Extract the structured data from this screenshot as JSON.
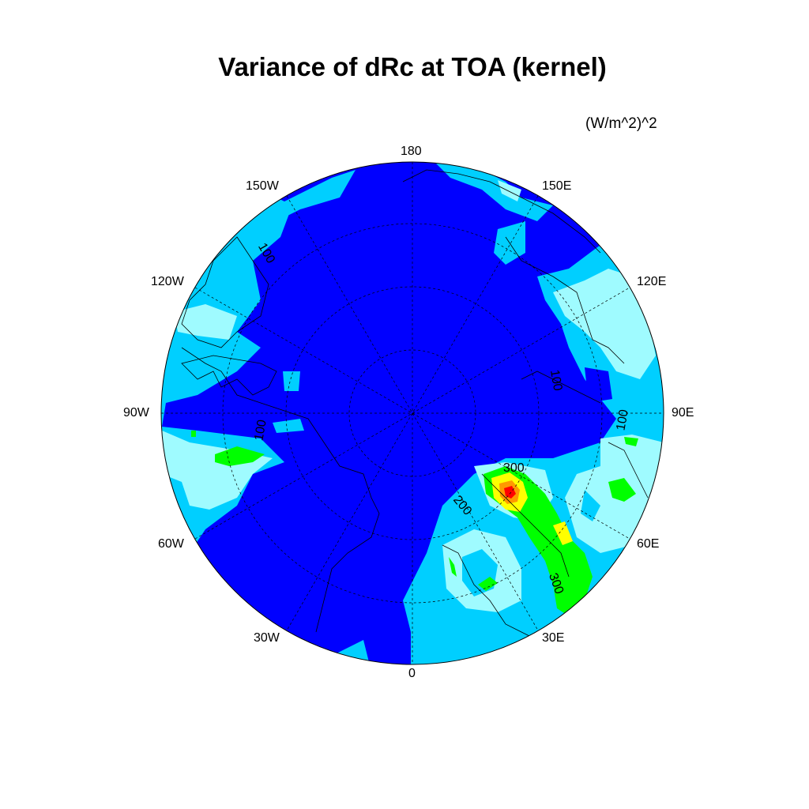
{
  "title": "Variance of dRc at TOA (kernel)",
  "units": "(W/m^2)^2",
  "longitude_labels": {
    "lon_180": "180",
    "lon_150E": "150E",
    "lon_120E": "120E",
    "lon_90E": "90E",
    "lon_60E": "60E",
    "lon_30E": "30E",
    "lon_0": "0",
    "lon_30W": "30W",
    "lon_60W": "60W",
    "lon_90W": "90W",
    "lon_120W": "120W",
    "lon_150W": "150W"
  },
  "contour_labels": {
    "c100_a": "100",
    "c100_b": "100",
    "c100_c": "100",
    "c100_d": "100",
    "c300_a": "300",
    "c300_b": "300",
    "c200": "200"
  },
  "colors": {
    "level_low": "#0000ff",
    "level_2": "#00cfff",
    "level_3": "#9ffbff",
    "level_4": "#00ff00",
    "level_5": "#ffff00",
    "level_6": "#ff9900",
    "level_high": "#ff0000"
  }
}
